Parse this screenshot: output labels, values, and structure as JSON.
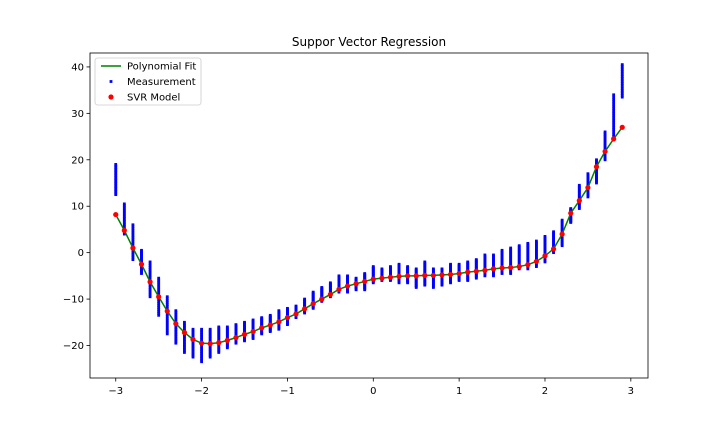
{
  "chart_data": {
    "type": "scatter",
    "title": "Suppor Vector Regression",
    "xlabel": "",
    "ylabel": "",
    "xlim": [
      -3.3,
      3.2
    ],
    "ylim": [
      -27,
      43
    ],
    "xticks": [
      -3,
      -2,
      -1,
      0,
      1,
      2,
      3
    ],
    "yticks": [
      -20,
      -10,
      0,
      10,
      20,
      30,
      40
    ],
    "xtick_labels": [
      "−3",
      "−2",
      "−1",
      "0",
      "1",
      "2",
      "3"
    ],
    "ytick_labels": [
      "−20",
      "−10",
      "0",
      "10",
      "20",
      "30",
      "40"
    ],
    "grid": false,
    "legend": {
      "position": "top-left",
      "entries": [
        {
          "label": "Polynomial Fit",
          "marker": "line",
          "color": "#008000"
        },
        {
          "label": "Measurement",
          "marker": "small-square",
          "color": "#0000ff"
        },
        {
          "label": "SVR Model",
          "marker": "dot",
          "color": "#ff0000"
        }
      ]
    },
    "series": [
      {
        "name": "Polynomial Fit",
        "kind": "line",
        "color": "#008000",
        "x": [
          -3.0,
          -2.9,
          -2.8,
          -2.7,
          -2.6,
          -2.5,
          -2.4,
          -2.3,
          -2.2,
          -2.1,
          -2.0,
          -1.9,
          -1.8,
          -1.7,
          -1.6,
          -1.5,
          -1.4,
          -1.3,
          -1.2,
          -1.1,
          -1.0,
          -0.9,
          -0.8,
          -0.7,
          -0.6,
          -0.5,
          -0.4,
          -0.3,
          -0.2,
          -0.1,
          0.0,
          0.1,
          0.2,
          0.3,
          0.4,
          0.5,
          0.6,
          0.7,
          0.8,
          0.9,
          1.0,
          1.1,
          1.2,
          1.3,
          1.4,
          1.5,
          1.6,
          1.7,
          1.8,
          1.9,
          2.0,
          2.1,
          2.2,
          2.3,
          2.4,
          2.5,
          2.6,
          2.7,
          2.8,
          2.9
        ],
        "y": [
          8.2,
          4.8,
          1.0,
          -2.5,
          -6.3,
          -9.5,
          -12.6,
          -15.3,
          -17.2,
          -18.7,
          -19.5,
          -19.6,
          -19.4,
          -18.9,
          -18.3,
          -17.6,
          -17.0,
          -16.2,
          -15.6,
          -14.9,
          -14.0,
          -13.2,
          -12.1,
          -11.0,
          -10.0,
          -9.0,
          -7.9,
          -7.2,
          -6.7,
          -6.2,
          -5.7,
          -5.5,
          -5.3,
          -5.1,
          -5.0,
          -5.0,
          -4.9,
          -4.9,
          -4.8,
          -4.7,
          -4.5,
          -4.2,
          -4.0,
          -3.8,
          -3.5,
          -3.3,
          -3.2,
          -3.0,
          -2.6,
          -1.9,
          -0.7,
          0.8,
          4.0,
          8.5,
          11.2,
          14.0,
          18.5,
          21.8,
          24.5,
          27.0
        ]
      },
      {
        "name": "SVR Model",
        "kind": "scatter",
        "color": "#ff0000",
        "x": [
          -3.0,
          -2.9,
          -2.8,
          -2.7,
          -2.6,
          -2.5,
          -2.4,
          -2.3,
          -2.2,
          -2.1,
          -2.0,
          -1.9,
          -1.8,
          -1.7,
          -1.6,
          -1.5,
          -1.4,
          -1.3,
          -1.2,
          -1.1,
          -1.0,
          -0.9,
          -0.8,
          -0.7,
          -0.6,
          -0.5,
          -0.4,
          -0.3,
          -0.2,
          -0.1,
          0.0,
          0.1,
          0.2,
          0.3,
          0.4,
          0.5,
          0.6,
          0.7,
          0.8,
          0.9,
          1.0,
          1.1,
          1.2,
          1.3,
          1.4,
          1.5,
          1.6,
          1.7,
          1.8,
          1.9,
          2.0,
          2.1,
          2.2,
          2.3,
          2.4,
          2.5,
          2.6,
          2.7,
          2.8,
          2.9
        ],
        "y": [
          8.2,
          4.8,
          1.0,
          -2.5,
          -6.3,
          -9.5,
          -12.6,
          -15.3,
          -17.2,
          -18.7,
          -19.5,
          -19.6,
          -19.4,
          -18.9,
          -18.3,
          -17.6,
          -17.0,
          -16.2,
          -15.6,
          -14.9,
          -14.0,
          -13.2,
          -12.1,
          -11.0,
          -10.0,
          -9.0,
          -7.9,
          -7.2,
          -6.7,
          -6.2,
          -5.7,
          -5.5,
          -5.3,
          -5.1,
          -5.0,
          -5.0,
          -4.9,
          -4.9,
          -4.8,
          -4.7,
          -4.5,
          -4.2,
          -4.0,
          -3.8,
          -3.5,
          -3.3,
          -3.2,
          -3.0,
          -2.6,
          -1.9,
          -0.7,
          0.8,
          4.0,
          8.5,
          11.2,
          14.0,
          18.5,
          21.8,
          24.5,
          27.0
        ]
      },
      {
        "name": "Measurement",
        "kind": "scatter",
        "color": "#0000ff",
        "x": [
          -3.0,
          -2.9,
          -2.8,
          -2.7,
          -2.6,
          -2.5,
          -2.4,
          -2.3,
          -2.2,
          -2.1,
          -2.0,
          -1.9,
          -1.8,
          -1.7,
          -1.6,
          -1.5,
          -1.4,
          -1.3,
          -1.2,
          -1.1,
          -1.0,
          -0.9,
          -0.8,
          -0.7,
          -0.6,
          -0.5,
          -0.4,
          -0.3,
          -0.2,
          -0.1,
          0.0,
          0.1,
          0.2,
          0.3,
          0.4,
          0.5,
          0.6,
          0.7,
          0.8,
          0.9,
          1.0,
          1.1,
          1.2,
          1.3,
          1.4,
          1.5,
          1.6,
          1.7,
          1.8,
          1.9,
          2.0,
          2.1,
          2.2,
          2.3,
          2.4,
          2.5,
          2.6,
          2.7,
          2.8,
          2.9
        ],
        "ymin": [
          12.5,
          4.0,
          -1.5,
          -4.5,
          -9.5,
          -13.5,
          -17.5,
          -19.5,
          -21.5,
          -22.5,
          -23.5,
          -22.5,
          -21.5,
          -20.5,
          -19.5,
          -19.0,
          -18.5,
          -17.5,
          -17.0,
          -16.5,
          -15.5,
          -14.0,
          -13.0,
          -12.0,
          -10.5,
          -9.5,
          -8.5,
          -8.5,
          -8.0,
          -8.0,
          -6.5,
          -6.0,
          -6.0,
          -6.5,
          -6.5,
          -7.5,
          -7.0,
          -7.5,
          -7.0,
          -6.5,
          -6.0,
          -6.0,
          -5.5,
          -5.0,
          -5.0,
          -4.5,
          -4.5,
          -3.5,
          -3.5,
          -3.0,
          -2.0,
          0.0,
          1.5,
          6.5,
          9.5,
          12.0,
          15.0,
          20.0,
          24.5,
          33.5
        ],
        "ymax": [
          19.0,
          10.5,
          6.0,
          0.5,
          -2.0,
          -5.5,
          -9.5,
          -12.5,
          -15.0,
          -16.5,
          -16.5,
          -16.5,
          -16.0,
          -16.0,
          -15.5,
          -15.0,
          -14.5,
          -14.0,
          -13.5,
          -12.5,
          -12.0,
          -11.5,
          -10.0,
          -8.5,
          -7.5,
          -6.5,
          -5.0,
          -5.0,
          -5.5,
          -4.5,
          -3.0,
          -3.5,
          -3.0,
          -2.5,
          -3.0,
          -3.5,
          -2.0,
          -3.5,
          -3.5,
          -2.5,
          -2.5,
          -2.0,
          -1.5,
          -0.5,
          -0.5,
          0.5,
          1.0,
          1.5,
          2.0,
          2.5,
          3.5,
          4.5,
          7.0,
          9.5,
          14.5,
          17.0,
          20.0,
          26.0,
          34.0,
          40.5
        ],
        "points_per_x": 20
      }
    ]
  }
}
